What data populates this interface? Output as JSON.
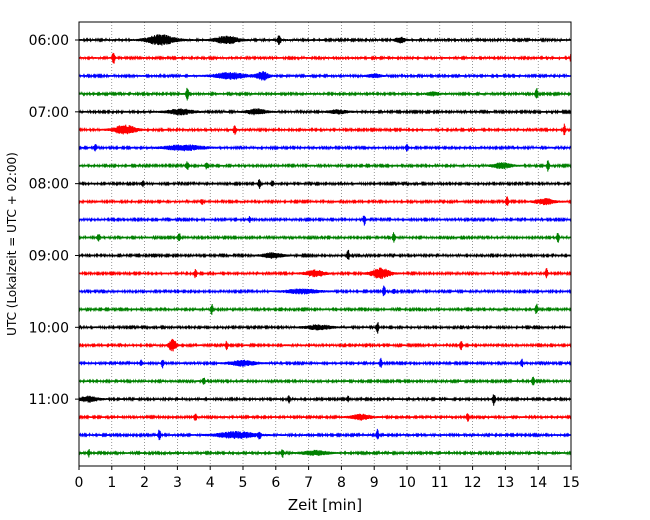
{
  "chart_data": {
    "type": "line",
    "title": "",
    "xlabel": "Zeit  [min]",
    "ylabel": "UTC (Lokalzeit = UTC + 02:00)",
    "xlim": [
      0,
      15
    ],
    "x_ticks": [
      "0",
      "1",
      "2",
      "3",
      "4",
      "5",
      "6",
      "7",
      "8",
      "9",
      "10",
      "11",
      "12",
      "13",
      "14",
      "15"
    ],
    "y_tick_labels": [
      "06:00",
      "07:00",
      "08:00",
      "09:00",
      "10:00",
      "11:00"
    ],
    "trace_interval_min": 15,
    "traces_per_hour": 4,
    "grid": "vertical dotted",
    "trace_colors": [
      "#000000",
      "#ff0000",
      "#0000ff",
      "#008000"
    ],
    "traces": [
      {
        "start": "06:00",
        "color": "#000000",
        "events": [
          {
            "t": 2.5,
            "amp": 0.55,
            "w": 0.45
          },
          {
            "t": 4.5,
            "amp": 0.4,
            "w": 0.4
          },
          {
            "t": 6.1,
            "amp": 0.6,
            "w": 0.05
          },
          {
            "t": 9.8,
            "amp": 0.3,
            "w": 0.15
          }
        ]
      },
      {
        "start": "06:15",
        "color": "#ff0000",
        "events": [
          {
            "t": 1.05,
            "amp": 0.8,
            "w": 0.04
          },
          {
            "t": 15.0,
            "amp": 0.5,
            "w": 0.03
          }
        ]
      },
      {
        "start": "06:30",
        "color": "#0000ff",
        "events": [
          {
            "t": 4.6,
            "amp": 0.35,
            "w": 0.5
          },
          {
            "t": 5.6,
            "amp": 0.45,
            "w": 0.2
          },
          {
            "t": 9.0,
            "amp": 0.2,
            "w": 0.2
          }
        ]
      },
      {
        "start": "06:45",
        "color": "#008000",
        "events": [
          {
            "t": 3.3,
            "amp": 0.7,
            "w": 0.04
          },
          {
            "t": 13.95,
            "amp": 0.7,
            "w": 0.04
          },
          {
            "t": 10.8,
            "amp": 0.2,
            "w": 0.2
          }
        ]
      },
      {
        "start": "07:00",
        "color": "#000000",
        "events": [
          {
            "t": 3.1,
            "amp": 0.3,
            "w": 0.4
          },
          {
            "t": 5.4,
            "amp": 0.3,
            "w": 0.3
          },
          {
            "t": 7.9,
            "amp": 0.2,
            "w": 0.3
          }
        ]
      },
      {
        "start": "07:15",
        "color": "#ff0000",
        "events": [
          {
            "t": 1.4,
            "amp": 0.5,
            "w": 0.35
          },
          {
            "t": 4.75,
            "amp": 0.6,
            "w": 0.04
          },
          {
            "t": 14.8,
            "amp": 0.6,
            "w": 0.04
          }
        ]
      },
      {
        "start": "07:30",
        "color": "#0000ff",
        "events": [
          {
            "t": 0.5,
            "amp": 0.35,
            "w": 0.05
          },
          {
            "t": 3.2,
            "amp": 0.3,
            "w": 0.6
          },
          {
            "t": 10.0,
            "amp": 0.4,
            "w": 0.04
          }
        ]
      },
      {
        "start": "07:45",
        "color": "#008000",
        "events": [
          {
            "t": 3.3,
            "amp": 0.45,
            "w": 0.05
          },
          {
            "t": 3.9,
            "amp": 0.4,
            "w": 0.05
          },
          {
            "t": 12.9,
            "amp": 0.3,
            "w": 0.3
          },
          {
            "t": 14.3,
            "amp": 0.6,
            "w": 0.04
          }
        ]
      },
      {
        "start": "08:00",
        "color": "#000000",
        "events": [
          {
            "t": 1.95,
            "amp": 0.3,
            "w": 0.05
          },
          {
            "t": 5.5,
            "amp": 0.55,
            "w": 0.04
          },
          {
            "t": 5.9,
            "amp": 0.35,
            "w": 0.04
          }
        ]
      },
      {
        "start": "08:15",
        "color": "#ff0000",
        "events": [
          {
            "t": 3.75,
            "amp": 0.35,
            "w": 0.04
          },
          {
            "t": 13.05,
            "amp": 0.55,
            "w": 0.04
          },
          {
            "t": 14.2,
            "amp": 0.3,
            "w": 0.3
          }
        ]
      },
      {
        "start": "08:30",
        "color": "#0000ff",
        "events": [
          {
            "t": 5.2,
            "amp": 0.3,
            "w": 0.04
          },
          {
            "t": 8.7,
            "amp": 0.6,
            "w": 0.04
          }
        ]
      },
      {
        "start": "08:45",
        "color": "#008000",
        "events": [
          {
            "t": 0.6,
            "amp": 0.35,
            "w": 0.05
          },
          {
            "t": 3.05,
            "amp": 0.55,
            "w": 0.04
          },
          {
            "t": 9.6,
            "amp": 0.55,
            "w": 0.04
          },
          {
            "t": 14.6,
            "amp": 0.55,
            "w": 0.04
          }
        ]
      },
      {
        "start": "09:00",
        "color": "#000000",
        "events": [
          {
            "t": 5.9,
            "amp": 0.3,
            "w": 0.3
          },
          {
            "t": 8.2,
            "amp": 0.65,
            "w": 0.04
          }
        ]
      },
      {
        "start": "09:15",
        "color": "#ff0000",
        "events": [
          {
            "t": 3.55,
            "amp": 0.55,
            "w": 0.04
          },
          {
            "t": 7.2,
            "amp": 0.35,
            "w": 0.3
          },
          {
            "t": 9.2,
            "amp": 0.55,
            "w": 0.3
          },
          {
            "t": 14.25,
            "amp": 0.55,
            "w": 0.04
          }
        ]
      },
      {
        "start": "09:30",
        "color": "#0000ff",
        "events": [
          {
            "t": 6.8,
            "amp": 0.25,
            "w": 0.5
          },
          {
            "t": 9.3,
            "amp": 0.65,
            "w": 0.04
          },
          {
            "t": 9.6,
            "amp": 0.35,
            "w": 0.04
          }
        ]
      },
      {
        "start": "09:45",
        "color": "#008000",
        "events": [
          {
            "t": 4.05,
            "amp": 0.55,
            "w": 0.04
          },
          {
            "t": 13.95,
            "amp": 0.6,
            "w": 0.04
          }
        ]
      },
      {
        "start": "10:00",
        "color": "#000000",
        "events": [
          {
            "t": 7.3,
            "amp": 0.25,
            "w": 0.4
          },
          {
            "t": 9.1,
            "amp": 0.65,
            "w": 0.04
          }
        ]
      },
      {
        "start": "10:15",
        "color": "#ff0000",
        "events": [
          {
            "t": 2.85,
            "amp": 0.65,
            "w": 0.12
          },
          {
            "t": 4.5,
            "amp": 0.45,
            "w": 0.04
          },
          {
            "t": 11.65,
            "amp": 0.55,
            "w": 0.04
          }
        ]
      },
      {
        "start": "10:30",
        "color": "#0000ff",
        "events": [
          {
            "t": 1.9,
            "amp": 0.35,
            "w": 0.04
          },
          {
            "t": 2.55,
            "amp": 0.5,
            "w": 0.04
          },
          {
            "t": 5.0,
            "amp": 0.3,
            "w": 0.4
          },
          {
            "t": 9.2,
            "amp": 0.5,
            "w": 0.04
          },
          {
            "t": 13.5,
            "amp": 0.45,
            "w": 0.04
          }
        ]
      },
      {
        "start": "10:45",
        "color": "#008000",
        "events": [
          {
            "t": 3.8,
            "amp": 0.45,
            "w": 0.04
          },
          {
            "t": 13.85,
            "amp": 0.55,
            "w": 0.04
          }
        ]
      },
      {
        "start": "11:00",
        "color": "#000000",
        "events": [
          {
            "t": 0.3,
            "amp": 0.3,
            "w": 0.3
          },
          {
            "t": 6.4,
            "amp": 0.4,
            "w": 0.04
          },
          {
            "t": 8.2,
            "amp": 0.3,
            "w": 0.04
          },
          {
            "t": 12.65,
            "amp": 0.7,
            "w": 0.04
          }
        ]
      },
      {
        "start": "11:15",
        "color": "#ff0000",
        "events": [
          {
            "t": 3.55,
            "amp": 0.45,
            "w": 0.04
          },
          {
            "t": 8.6,
            "amp": 0.3,
            "w": 0.3
          },
          {
            "t": 11.85,
            "amp": 0.55,
            "w": 0.04
          }
        ]
      },
      {
        "start": "11:30",
        "color": "#0000ff",
        "events": [
          {
            "t": 2.45,
            "amp": 0.6,
            "w": 0.04
          },
          {
            "t": 4.8,
            "amp": 0.35,
            "w": 0.6
          },
          {
            "t": 5.5,
            "amp": 0.45,
            "w": 0.04
          },
          {
            "t": 9.1,
            "amp": 0.6,
            "w": 0.04
          }
        ]
      },
      {
        "start": "11:45",
        "color": "#008000",
        "events": [
          {
            "t": 0.3,
            "amp": 0.4,
            "w": 0.04
          },
          {
            "t": 6.2,
            "amp": 0.5,
            "w": 0.04
          },
          {
            "t": 7.2,
            "amp": 0.25,
            "w": 0.4
          }
        ]
      }
    ]
  }
}
